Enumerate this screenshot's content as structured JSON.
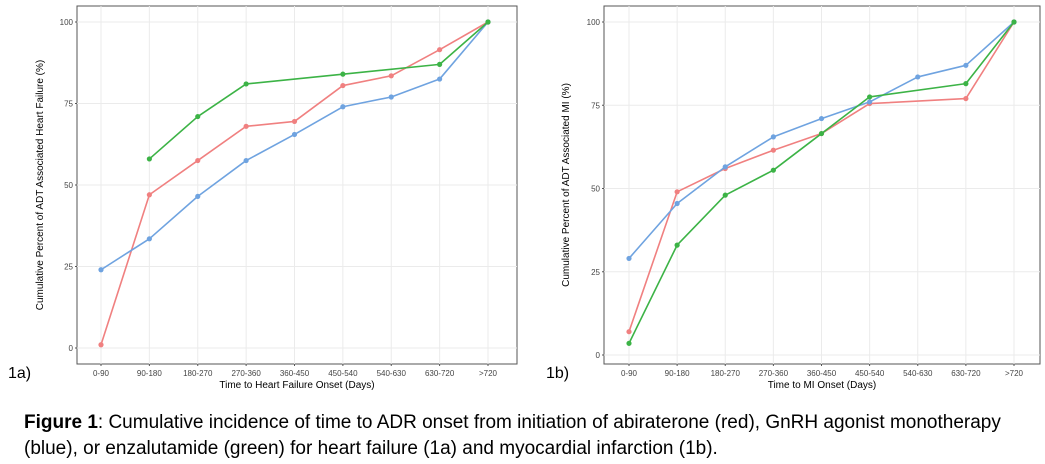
{
  "chart_data": [
    {
      "panel_label": "1a)",
      "type": "line",
      "xlabel": "Time to Heart Failure Onset (Days)",
      "ylabel": "Cumulative Percent of ADT Associated Heart Failure (%)",
      "ylim": [
        0,
        100
      ],
      "yticks": [
        0,
        25,
        50,
        75,
        100
      ],
      "categories": [
        "0-90",
        "90-180",
        "180-270",
        "270-360",
        "360-450",
        "450-540",
        "540-630",
        "630-720",
        ">720"
      ],
      "grid": true,
      "series": [
        {
          "color": "#f08080",
          "values": [
            1,
            47,
            57.5,
            68,
            69.5,
            80.5,
            83.5,
            91.5,
            100
          ]
        },
        {
          "color": "#6fa3e0",
          "values": [
            24,
            33.5,
            46.5,
            57.5,
            65.5,
            74,
            77,
            82.5,
            100
          ]
        },
        {
          "color": "#3cb346",
          "values": [
            null,
            58,
            71,
            81,
            null,
            84,
            null,
            87,
            100
          ]
        }
      ]
    },
    {
      "panel_label": "1b)",
      "type": "line",
      "xlabel": "Time to MI Onset (Days)",
      "ylabel": "Cumulative Percent of ADT Associated MI (%)",
      "ylim": [
        0,
        100
      ],
      "yticks": [
        0,
        25,
        50,
        75,
        100
      ],
      "categories": [
        "0-90",
        "90-180",
        "180-270",
        "270-360",
        "360-450",
        "450-540",
        "540-630",
        "630-720",
        ">720"
      ],
      "grid": true,
      "series": [
        {
          "color": "#f08080",
          "values": [
            7,
            49,
            56,
            61.5,
            66.5,
            75.5,
            null,
            77,
            100
          ]
        },
        {
          "color": "#6fa3e0",
          "values": [
            29,
            45.5,
            56.5,
            65.5,
            71,
            76,
            83.5,
            87,
            100
          ]
        },
        {
          "color": "#3cb346",
          "values": [
            3.5,
            33,
            48,
            55.5,
            66.5,
            77.5,
            null,
            81.5,
            100
          ]
        }
      ]
    }
  ],
  "caption": {
    "bold": "Figure 1",
    "text": ": Cumulative incidence of time to ADR onset from initiation of abiraterone (red), GnRH agonist monotherapy (blue), or enzalutamide (green) for heart failure (1a) and myocardial infarction (1b)."
  }
}
